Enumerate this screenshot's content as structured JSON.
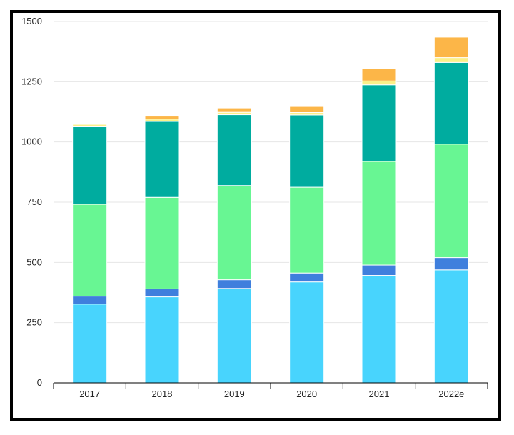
{
  "chart_data": {
    "type": "bar",
    "stacked": true,
    "categories": [
      "2017",
      "2018",
      "2019",
      "2020",
      "2021",
      "2022e"
    ],
    "ylim": [
      0,
      1500
    ],
    "yticks": [
      "0",
      "250",
      "500",
      "750",
      "1000",
      "1250",
      "1500"
    ],
    "grid": true,
    "legend": "none",
    "title": "",
    "xlabel": "",
    "ylabel": "",
    "series": [
      {
        "color": "#48D4FD",
        "values": [
          327,
          357,
          392,
          419,
          446,
          469
        ]
      },
      {
        "color": "#3F7FDD",
        "values": [
          33,
          33,
          36,
          37,
          43,
          51
        ]
      },
      {
        "color": "#68F693",
        "values": [
          381,
          380,
          391,
          356,
          430,
          471
        ]
      },
      {
        "color": "#00AC9F",
        "values": [
          322,
          315,
          294,
          300,
          318,
          339
        ]
      },
      {
        "color": "#FBF08A",
        "values": [
          10,
          10,
          10,
          10,
          16,
          20
        ]
      },
      {
        "color": "#FCB648",
        "values": [
          4,
          12,
          18,
          25,
          52,
          85
        ]
      }
    ]
  }
}
